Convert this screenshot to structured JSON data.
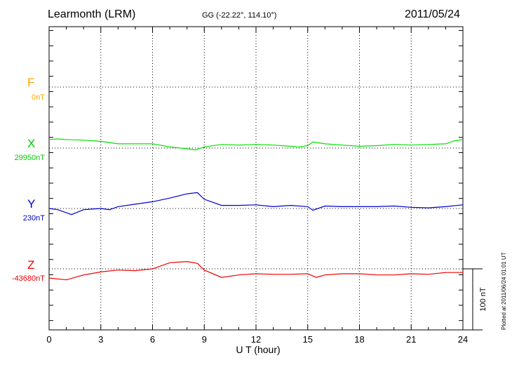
{
  "header": {
    "station": "Learmonth (LRM)",
    "coords": "GG (-22.22°, 114.10°)",
    "date": "2011/05/24"
  },
  "footer": {
    "plotted": "Plotted at 2011/06/24 01:01 UT"
  },
  "chart_data": {
    "type": "line",
    "xlabel": "U T (hour)",
    "xlim": [
      0,
      24
    ],
    "xticks": [
      "0",
      "3",
      "6",
      "9",
      "12",
      "15",
      "18",
      "21",
      "24"
    ],
    "grid": true,
    "scale_bar": {
      "label": "100 nT",
      "value_nT": 100
    },
    "components": [
      {
        "name": "F",
        "baseline_label": "0nT",
        "color": "#ffa500",
        "points": []
      },
      {
        "name": "X",
        "baseline_label": "29950nT",
        "color": "#00e000",
        "points": [
          [
            0,
            14
          ],
          [
            0.5,
            15
          ],
          [
            1,
            14
          ],
          [
            2,
            13
          ],
          [
            3,
            11
          ],
          [
            4,
            7
          ],
          [
            5,
            7
          ],
          [
            6,
            7
          ],
          [
            7,
            2
          ],
          [
            8,
            -1
          ],
          [
            8.5,
            -3
          ],
          [
            9,
            2
          ],
          [
            10,
            6
          ],
          [
            11,
            5
          ],
          [
            12,
            6
          ],
          [
            13,
            5
          ],
          [
            14,
            3
          ],
          [
            14.5,
            2
          ],
          [
            15,
            4
          ],
          [
            15.3,
            10
          ],
          [
            16,
            7
          ],
          [
            17,
            5
          ],
          [
            18,
            3
          ],
          [
            19,
            4
          ],
          [
            20,
            6
          ],
          [
            21,
            5
          ],
          [
            22,
            6
          ],
          [
            23,
            7
          ],
          [
            23.5,
            12
          ],
          [
            24,
            14
          ]
        ]
      },
      {
        "name": "Y",
        "baseline_label": "230nT",
        "color": "#0000cc",
        "points": [
          [
            0,
            0
          ],
          [
            0.5,
            -2
          ],
          [
            1.3,
            -10
          ],
          [
            2,
            -2
          ],
          [
            3,
            0
          ],
          [
            3.5,
            -2
          ],
          [
            4,
            3
          ],
          [
            5,
            7
          ],
          [
            6,
            11
          ],
          [
            7,
            17
          ],
          [
            8,
            24
          ],
          [
            8.6,
            26
          ],
          [
            9,
            15
          ],
          [
            10,
            5
          ],
          [
            11,
            5
          ],
          [
            12,
            6
          ],
          [
            13,
            3
          ],
          [
            14,
            5
          ],
          [
            15,
            3
          ],
          [
            15.3,
            -3
          ],
          [
            16,
            4
          ],
          [
            17,
            3
          ],
          [
            18,
            3
          ],
          [
            19,
            3
          ],
          [
            20,
            4
          ],
          [
            21,
            2
          ],
          [
            22,
            1
          ],
          [
            23,
            3
          ],
          [
            24,
            6
          ]
        ]
      },
      {
        "name": "Z",
        "baseline_label": "-43680nT",
        "color": "#ee0000",
        "points": [
          [
            0,
            -15
          ],
          [
            1,
            -18
          ],
          [
            2,
            -10
          ],
          [
            3,
            -5
          ],
          [
            4,
            -2
          ],
          [
            5,
            -3
          ],
          [
            6,
            0
          ],
          [
            7,
            10
          ],
          [
            8,
            12
          ],
          [
            8.6,
            9
          ],
          [
            9,
            -2
          ],
          [
            10,
            -14
          ],
          [
            11,
            -10
          ],
          [
            12,
            -8
          ],
          [
            13,
            -9
          ],
          [
            14,
            -9
          ],
          [
            15,
            -8
          ],
          [
            15.5,
            -14
          ],
          [
            16,
            -10
          ],
          [
            17,
            -8
          ],
          [
            18,
            -8
          ],
          [
            19,
            -10
          ],
          [
            20,
            -10
          ],
          [
            21,
            -8
          ],
          [
            22,
            -9
          ],
          [
            23,
            -6
          ],
          [
            24,
            -6
          ]
        ]
      }
    ]
  }
}
